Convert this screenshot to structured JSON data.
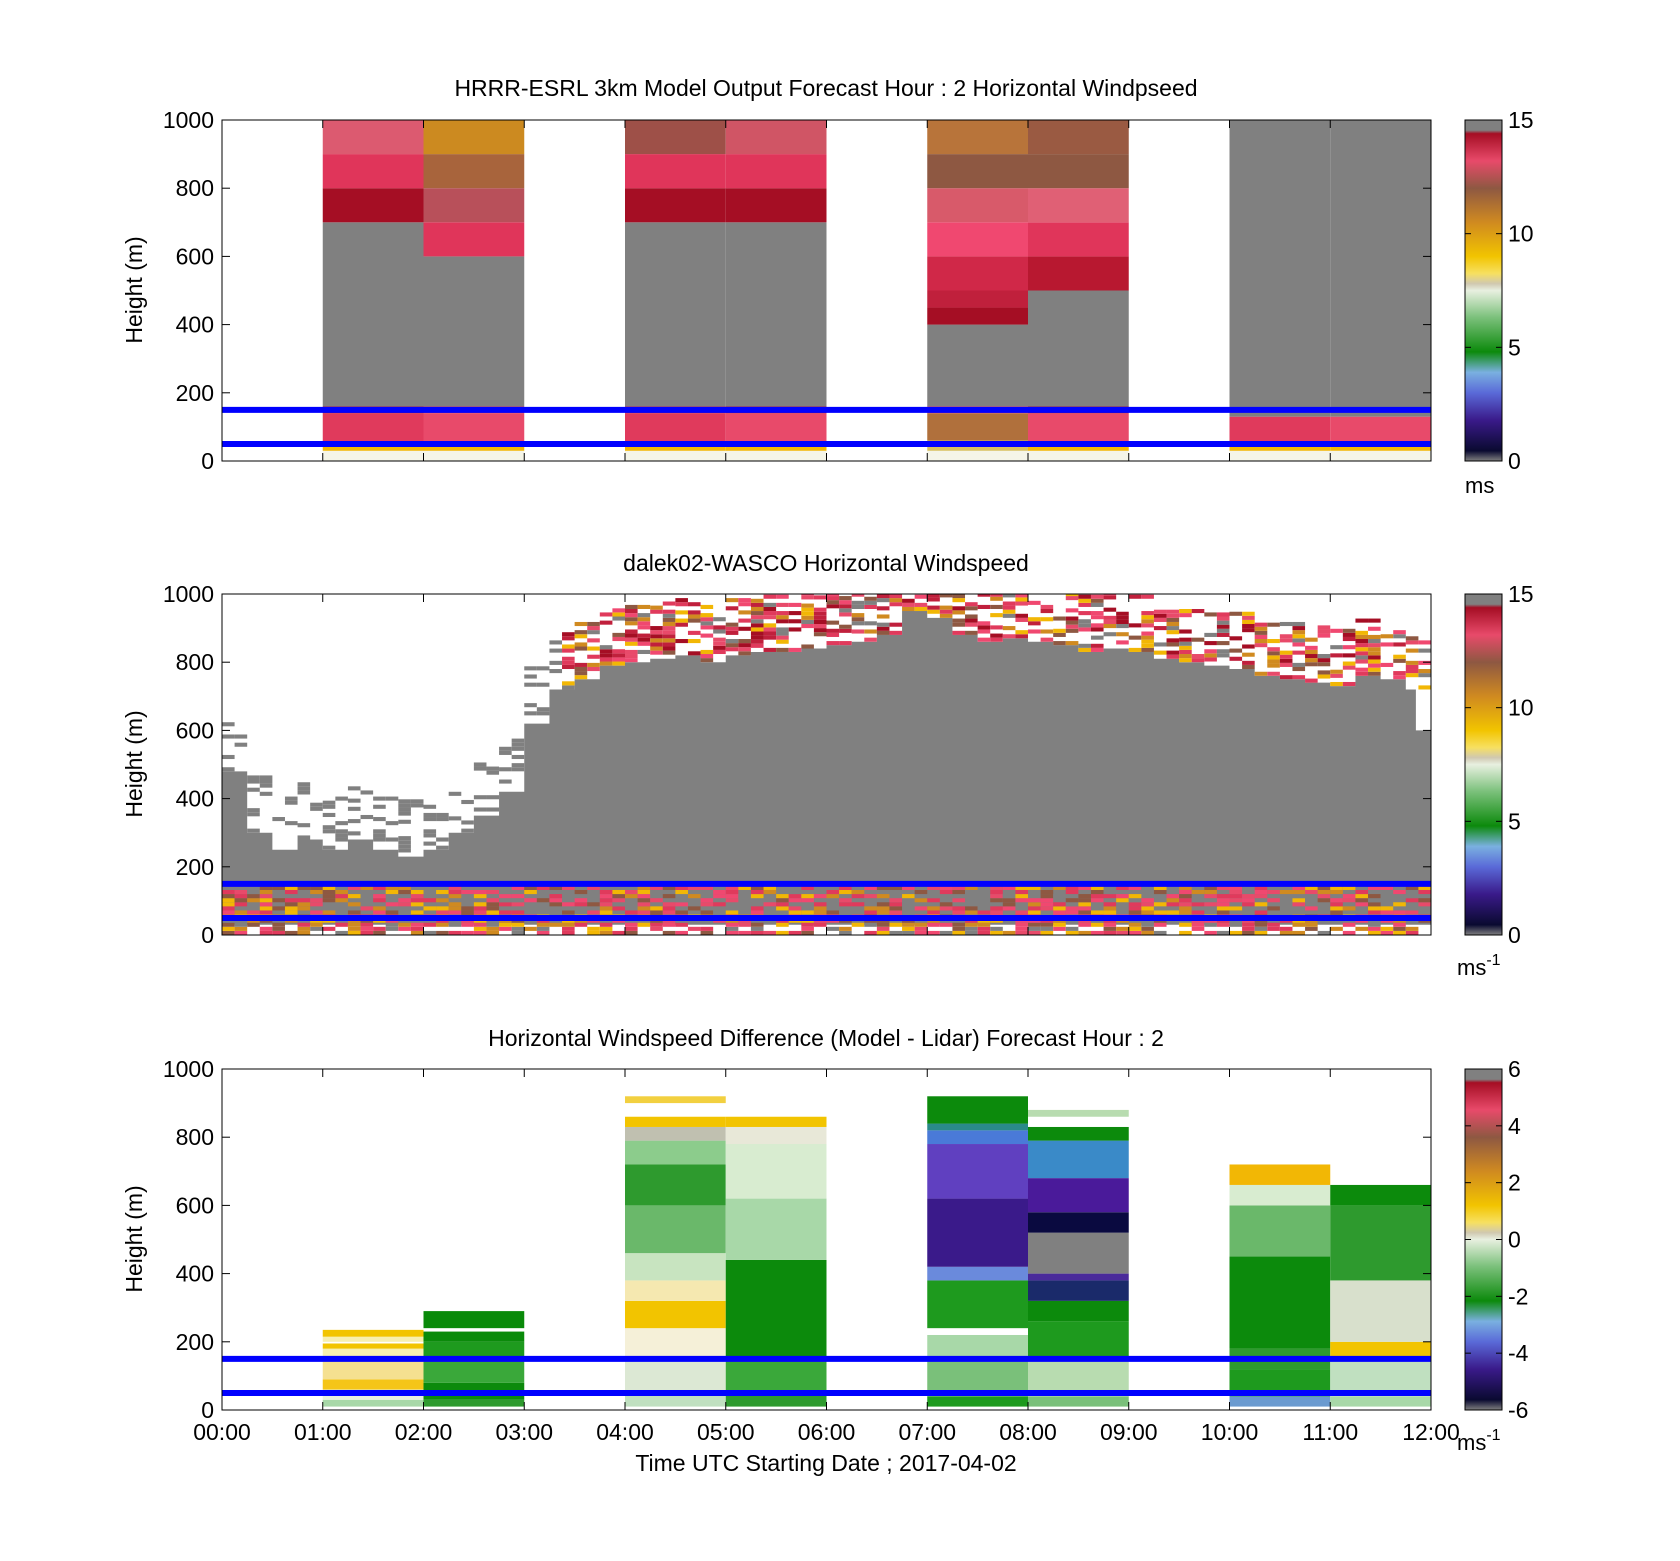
{
  "colors": {
    "overlay_lines": "#0000ff",
    "no_data": "#ffffff",
    "saturated": "#808080"
  },
  "chart_data": [
    {
      "type": "heatmap",
      "title": "HRRR-ESRL 3km Model Output   Forecast Hour : 2 Horizontal Windpseed",
      "ylabel": "Height (m)",
      "xlabel": "",
      "ylim": [
        0,
        1000
      ],
      "yticks": [
        "0",
        "200",
        "400",
        "600",
        "800",
        "1000"
      ],
      "xlim_hours": [
        0,
        12
      ],
      "colorbar": {
        "min": 0,
        "max": 15,
        "ticks": [
          "0",
          "5",
          "10",
          "15"
        ],
        "unit_base": "ms",
        "unit_exp": ""
      },
      "reference_lines_m": [
        150,
        50
      ],
      "bins": [
        {
          "t0": 1,
          "t1": 2,
          "layers": [
            [
              0,
              30,
              "#f5f5e8"
            ],
            [
              30,
              50,
              "#f2b705"
            ],
            [
              50,
              140,
              "#e03a5c"
            ],
            [
              140,
              160,
              "#b0102a"
            ],
            [
              160,
              700,
              "#808080"
            ],
            [
              700,
              800,
              "#a50e24"
            ],
            [
              800,
              900,
              "#e0355a"
            ],
            [
              900,
              1000,
              "#dc5a70"
            ]
          ]
        },
        {
          "t0": 2,
          "t1": 3,
          "layers": [
            [
              0,
              30,
              "#f5f5e8"
            ],
            [
              30,
              50,
              "#f2b705"
            ],
            [
              50,
              140,
              "#e84a6a"
            ],
            [
              140,
              160,
              "#d6304f"
            ],
            [
              160,
              600,
              "#808080"
            ],
            [
              600,
              700,
              "#e0355a"
            ],
            [
              700,
              800,
              "#b8505a"
            ],
            [
              800,
              900,
              "#a8643c"
            ],
            [
              900,
              1000,
              "#cc8a20"
            ]
          ]
        },
        {
          "t0": 4,
          "t1": 5,
          "layers": [
            [
              0,
              30,
              "#f5f5e8"
            ],
            [
              30,
              50,
              "#f2b705"
            ],
            [
              50,
              140,
              "#e03a5c"
            ],
            [
              140,
              160,
              "#c0203c"
            ],
            [
              160,
              700,
              "#808080"
            ],
            [
              700,
              800,
              "#a50e24"
            ],
            [
              800,
              900,
              "#e0355a"
            ],
            [
              900,
              1000,
              "#9e5048"
            ]
          ]
        },
        {
          "t0": 5,
          "t1": 6,
          "layers": [
            [
              0,
              30,
              "#f5f5e8"
            ],
            [
              30,
              50,
              "#f2b705"
            ],
            [
              50,
              140,
              "#e84a6a"
            ],
            [
              140,
              160,
              "#b0102a"
            ],
            [
              160,
              700,
              "#808080"
            ],
            [
              700,
              800,
              "#a50e24"
            ],
            [
              800,
              900,
              "#e0355a"
            ],
            [
              900,
              1000,
              "#d05565"
            ]
          ]
        },
        {
          "t0": 7,
          "t1": 8,
          "layers": [
            [
              0,
              30,
              "#f5f5e8"
            ],
            [
              30,
              60,
              "#d8c060"
            ],
            [
              60,
              140,
              "#b0703c"
            ],
            [
              140,
              160,
              "#e03a5c"
            ],
            [
              160,
              400,
              "#808080"
            ],
            [
              400,
              450,
              "#a50e24"
            ],
            [
              450,
              500,
              "#c0203c"
            ],
            [
              500,
              600,
              "#d02848"
            ],
            [
              600,
              700,
              "#f04870"
            ],
            [
              700,
              800,
              "#d85a6a"
            ],
            [
              800,
              900,
              "#8e5842"
            ],
            [
              900,
              1000,
              "#b8743a"
            ]
          ]
        },
        {
          "t0": 8,
          "t1": 9,
          "layers": [
            [
              0,
              30,
              "#f5f5e8"
            ],
            [
              30,
              50,
              "#f2b705"
            ],
            [
              50,
              140,
              "#e84a6a"
            ],
            [
              140,
              160,
              "#a50e24"
            ],
            [
              160,
              500,
              "#808080"
            ],
            [
              500,
              600,
              "#b81830"
            ],
            [
              600,
              700,
              "#e0355a"
            ],
            [
              700,
              800,
              "#e06075"
            ],
            [
              800,
              900,
              "#8e5842"
            ],
            [
              900,
              1000,
              "#9a5a42"
            ]
          ]
        },
        {
          "t0": 10,
          "t1": 11,
          "layers": [
            [
              0,
              30,
              "#f5f5e8"
            ],
            [
              30,
              50,
              "#f2b705"
            ],
            [
              50,
              130,
              "#e03a5c"
            ],
            [
              130,
              1000,
              "#808080"
            ]
          ]
        },
        {
          "t0": 11,
          "t1": 12,
          "layers": [
            [
              0,
              30,
              "#f5f5e8"
            ],
            [
              30,
              50,
              "#f2b705"
            ],
            [
              50,
              130,
              "#e84a6a"
            ],
            [
              130,
              1000,
              "#808080"
            ]
          ]
        }
      ]
    },
    {
      "type": "heatmap",
      "title": "dalek02-WASCO  Horizontal Windspeed",
      "ylabel": "Height (m)",
      "xlabel": "",
      "ylim": [
        0,
        1000
      ],
      "yticks": [
        "0",
        "200",
        "400",
        "600",
        "800",
        "1000"
      ],
      "xlim_hours": [
        0,
        12
      ],
      "colorbar": {
        "min": 0,
        "max": 15,
        "ticks": [
          "0",
          "5",
          "10",
          "15"
        ],
        "unit_base": "ms",
        "unit_exp": "-1"
      },
      "reference_lines_m": [
        150,
        50
      ],
      "gray_top_m": [
        [
          0.0,
          480
        ],
        [
          0.25,
          300
        ],
        [
          0.5,
          250
        ],
        [
          0.75,
          280
        ],
        [
          1.0,
          250
        ],
        [
          1.25,
          280
        ],
        [
          1.5,
          250
        ],
        [
          1.75,
          230
        ],
        [
          2.0,
          250
        ],
        [
          2.25,
          300
        ],
        [
          2.5,
          350
        ],
        [
          2.75,
          420
        ],
        [
          3.0,
          620
        ],
        [
          3.25,
          720
        ],
        [
          3.5,
          750
        ],
        [
          3.75,
          790
        ],
        [
          4.0,
          800
        ],
        [
          4.25,
          810
        ],
        [
          4.5,
          820
        ],
        [
          4.75,
          800
        ],
        [
          5.0,
          820
        ],
        [
          5.25,
          830
        ],
        [
          5.5,
          830
        ],
        [
          5.75,
          840
        ],
        [
          6.0,
          850
        ],
        [
          6.25,
          860
        ],
        [
          6.5,
          880
        ],
        [
          6.75,
          950
        ],
        [
          7.0,
          930
        ],
        [
          7.25,
          880
        ],
        [
          7.5,
          860
        ],
        [
          7.75,
          870
        ],
        [
          8.0,
          860
        ],
        [
          8.25,
          850
        ],
        [
          8.5,
          830
        ],
        [
          8.75,
          840
        ],
        [
          9.0,
          830
        ],
        [
          9.25,
          810
        ],
        [
          9.5,
          800
        ],
        [
          9.75,
          790
        ],
        [
          10.0,
          780
        ],
        [
          10.25,
          760
        ],
        [
          10.5,
          750
        ],
        [
          10.75,
          740
        ],
        [
          11.0,
          730
        ],
        [
          11.25,
          760
        ],
        [
          11.5,
          750
        ],
        [
          11.75,
          720
        ],
        [
          11.85,
          600
        ]
      ],
      "gray_bottom_m": 30,
      "notes": "lidar range-gate colours"
    },
    {
      "type": "heatmap",
      "title": "Horizontal Windspeed Difference (Model - Lidar) Forecast Hour : 2",
      "ylabel": "Height (m)",
      "xlabel": "Time UTC  Starting Date ; 2017-04-02",
      "ylim": [
        0,
        1000
      ],
      "yticks": [
        "0",
        "200",
        "400",
        "600",
        "800",
        "1000"
      ],
      "xlim_hours": [
        0,
        12
      ],
      "xticks": [
        "00:00",
        "01:00",
        "02:00",
        "03:00",
        "04:00",
        "05:00",
        "06:00",
        "07:00",
        "08:00",
        "09:00",
        "10:00",
        "11:00",
        "12:00"
      ],
      "colorbar": {
        "min": -6,
        "max": 6,
        "ticks": [
          "-6",
          "-4",
          "-2",
          "0",
          "2",
          "4",
          "6"
        ],
        "unit_base": "ms",
        "unit_exp": "-1"
      },
      "reference_lines_m": [
        150,
        50
      ],
      "bins": [
        {
          "t0": 1,
          "t1": 2,
          "layers": [
            [
              10,
              30,
              "#a8d8a8"
            ],
            [
              30,
              60,
              "#e8f0e0"
            ],
            [
              60,
              90,
              "#f5c518"
            ],
            [
              90,
              150,
              "#f5e090"
            ],
            [
              150,
              180,
              "#f7efb0"
            ],
            [
              180,
              195,
              "#f2c400"
            ],
            [
              200,
              215,
              "#f7efb0"
            ],
            [
              215,
              235,
              "#f2c400"
            ]
          ]
        },
        {
          "t0": 2,
          "t1": 3,
          "layers": [
            [
              10,
              30,
              "#2e9a2e"
            ],
            [
              30,
              80,
              "#0c8a0c"
            ],
            [
              80,
              150,
              "#3aa83a"
            ],
            [
              150,
              200,
              "#1e9a1e"
            ],
            [
              200,
              230,
              "#0a8a0a"
            ],
            [
              240,
              290,
              "#0a8a0a"
            ]
          ]
        },
        {
          "t0": 4,
          "t1": 5,
          "layers": [
            [
              10,
              50,
              "#c0e0c0"
            ],
            [
              50,
              150,
              "#dce8d4"
            ],
            [
              150,
              240,
              "#f5f0d8"
            ],
            [
              240,
              320,
              "#f2c400"
            ],
            [
              320,
              380,
              "#f5e8b0"
            ],
            [
              380,
              460,
              "#c8e4c0"
            ],
            [
              460,
              600,
              "#6ab86a"
            ],
            [
              600,
              720,
              "#2e9a2e"
            ],
            [
              720,
              790,
              "#8ccc8c"
            ],
            [
              790,
              830,
              "#c0c0b0"
            ],
            [
              830,
              860,
              "#f2c400"
            ],
            [
              900,
              920,
              "#f2d040"
            ]
          ]
        },
        {
          "t0": 5,
          "t1": 6,
          "layers": [
            [
              10,
              50,
              "#2e9a2e"
            ],
            [
              50,
              150,
              "#3aa83a"
            ],
            [
              150,
              440,
              "#0c8a0c"
            ],
            [
              440,
              620,
              "#a8d8a8"
            ],
            [
              620,
              780,
              "#d8ecd0"
            ],
            [
              780,
              830,
              "#e8e8d8"
            ],
            [
              830,
              860,
              "#f2c400"
            ]
          ]
        },
        {
          "t0": 7,
          "t1": 8,
          "layers": [
            [
              10,
              40,
              "#1e9a1e"
            ],
            [
              40,
              150,
              "#7ac07a"
            ],
            [
              150,
              220,
              "#a8d8a8"
            ],
            [
              240,
              380,
              "#1e9a1e"
            ],
            [
              380,
              420,
              "#6a8adc"
            ],
            [
              420,
              620,
              "#3a1a8a"
            ],
            [
              620,
              780,
              "#6040c0"
            ],
            [
              780,
              820,
              "#4a7ad8"
            ],
            [
              820,
              840,
              "#2a8a8a"
            ],
            [
              840,
              920,
              "#0c8a0c"
            ]
          ]
        },
        {
          "t0": 8,
          "t1": 9,
          "layers": [
            [
              10,
              40,
              "#7ac07a"
            ],
            [
              40,
              150,
              "#b8dcb0"
            ],
            [
              150,
              260,
              "#1e9a1e"
            ],
            [
              260,
              320,
              "#0c8a0c"
            ],
            [
              320,
              380,
              "#1a2a6a"
            ],
            [
              380,
              400,
              "#4a2a9a"
            ],
            [
              400,
              520,
              "#808080"
            ],
            [
              520,
              580,
              "#0a0a40"
            ],
            [
              580,
              680,
              "#4a1a9a"
            ],
            [
              680,
              790,
              "#3a8ac8"
            ],
            [
              790,
              830,
              "#0c8a0c"
            ],
            [
              860,
              880,
              "#b8dcb0"
            ]
          ]
        },
        {
          "t0": 10,
          "t1": 11,
          "layers": [
            [
              10,
              40,
              "#6a9ad0"
            ],
            [
              40,
              120,
              "#1e9a1e"
            ],
            [
              120,
              180,
              "#2e9a2e"
            ],
            [
              180,
              450,
              "#0c8a0c"
            ],
            [
              450,
              600,
              "#6ab86a"
            ],
            [
              600,
              660,
              "#d8ecd0"
            ],
            [
              660,
              720,
              "#f2b705"
            ]
          ]
        },
        {
          "t0": 11,
          "t1": 12,
          "layers": [
            [
              10,
              40,
              "#a8d8a8"
            ],
            [
              40,
              150,
              "#c0e0c0"
            ],
            [
              150,
              200,
              "#f2c400"
            ],
            [
              200,
              380,
              "#d8e0cc"
            ],
            [
              380,
              600,
              "#2e9a2e"
            ],
            [
              600,
              660,
              "#0c8a0c"
            ]
          ]
        }
      ]
    }
  ]
}
